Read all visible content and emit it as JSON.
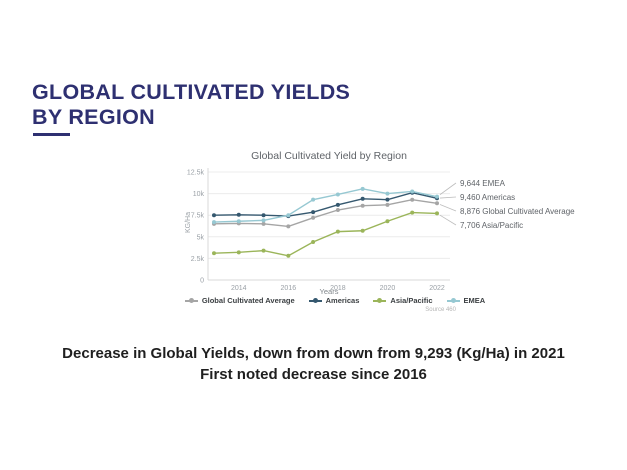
{
  "slide": {
    "title_line1": "GLOBAL CULTIVATED YIELDS",
    "title_line2": "BY REGION",
    "caption_line1": "Decrease in Global Yields, down from down from 9,293 (Kg/Ha) in 2021",
    "caption_line2": "First noted decrease since 2016"
  },
  "colors": {
    "accent_navy": "#2e3071",
    "grid": "#ececec",
    "axis": "#d9d9d9",
    "tick_text": "#9aa0a6",
    "annotation_text": "#5f6368",
    "connector": "#bdbdbd"
  },
  "chart_data": {
    "type": "line",
    "title": "Global Cultivated Yield by Region",
    "xlabel": "Years",
    "ylabel": "KG/Ha",
    "source": "Source 460",
    "x": [
      2013,
      2014,
      2015,
      2016,
      2017,
      2018,
      2019,
      2020,
      2021,
      2022
    ],
    "x_tick_labels": [
      "2014",
      "2016",
      "2018",
      "2020",
      "2022"
    ],
    "x_tick_years": [
      2014,
      2016,
      2018,
      2020,
      2022
    ],
    "y_ticks": [
      {
        "value": 0,
        "label": "0"
      },
      {
        "value": 2500,
        "label": "2.5k"
      },
      {
        "value": 5000,
        "label": "5k"
      },
      {
        "value": 7500,
        "label": "7.5k"
      },
      {
        "value": 10000,
        "label": "10k"
      },
      {
        "value": 12500,
        "label": "12.5k"
      }
    ],
    "ylim": [
      0,
      12500
    ],
    "legend_position": "bottom",
    "grid": true,
    "series": [
      {
        "name": "Global Cultivated Average",
        "color": "#a5a5a5",
        "values": [
          6500,
          6550,
          6500,
          6200,
          7200,
          8100,
          8600,
          8700,
          9293,
          8876
        ],
        "end_label": "8,876 Global Cultivated Average"
      },
      {
        "name": "Americas",
        "color": "#35586f",
        "values": [
          7500,
          7550,
          7500,
          7400,
          7850,
          8700,
          9400,
          9300,
          10100,
          9460
        ],
        "end_label": "9,460 Americas"
      },
      {
        "name": "Asia/Pacific",
        "color": "#9bb55a",
        "values": [
          3100,
          3200,
          3400,
          2800,
          4400,
          5600,
          5700,
          6800,
          7800,
          7706
        ],
        "end_label": "7,706 Asia/Pacific"
      },
      {
        "name": "EMEA",
        "color": "#96c8d2",
        "values": [
          6700,
          6800,
          6900,
          7500,
          9300,
          9900,
          10550,
          10000,
          10250,
          9644
        ],
        "end_label": "9,644 EMEA"
      }
    ],
    "annotation_order": [
      "EMEA",
      "Americas",
      "Global Cultivated Average",
      "Asia/Pacific"
    ]
  }
}
